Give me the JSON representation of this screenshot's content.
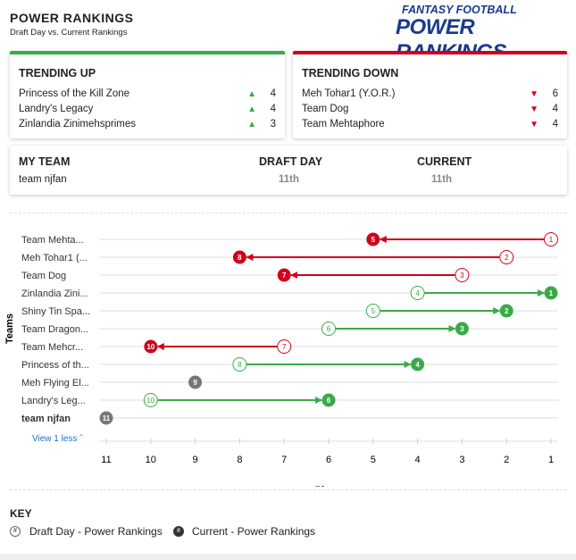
{
  "header": {
    "title": "POWER RANKINGS",
    "subtitle": "Draft Day vs. Current Rankings",
    "logo_text": [
      "FANTASY FOOTBALL",
      "POWER RANKINGS"
    ]
  },
  "trending_up": {
    "title": "TRENDING UP",
    "color": "#3aaa48",
    "items": [
      {
        "team": "Princess of the Kill Zone",
        "change": "4"
      },
      {
        "team": "Landry's Legacy",
        "change": "4"
      },
      {
        "team": "Zinlandia Zinimehsprimes",
        "change": "3"
      }
    ]
  },
  "trending_down": {
    "title": "TRENDING DOWN",
    "color": "#d0021b",
    "items": [
      {
        "team": "Meh Tohar1 (Y.O.R.)",
        "change": "6"
      },
      {
        "team": "Team Dog",
        "change": "4"
      },
      {
        "team": "Team Mehtaphore",
        "change": "4"
      }
    ]
  },
  "my_team": {
    "label": "MY TEAM",
    "draft_label": "DRAFT DAY",
    "current_label": "CURRENT",
    "team": "team njfan",
    "draft": "11th",
    "current": "11th"
  },
  "view_less": "View 1 less",
  "chart_data": {
    "type": "dumbbell",
    "xlabel": "Place",
    "ylabel": "Teams",
    "xlim": [
      11,
      1
    ],
    "x_reversed": true,
    "ticks": [
      "11",
      "10",
      "9",
      "8",
      "7",
      "6",
      "5",
      "4",
      "3",
      "2",
      "1"
    ],
    "colors": {
      "up": "#3aaa48",
      "down": "#d0021b",
      "same": "#777777"
    },
    "rows": [
      {
        "team": "Team Mehta...",
        "draft": 1,
        "current": 5
      },
      {
        "team": "Meh Tohar1 (...",
        "draft": 2,
        "current": 8
      },
      {
        "team": "Team Dog",
        "draft": 3,
        "current": 7
      },
      {
        "team": "Zinlandia Zini...",
        "draft": 4,
        "current": 1
      },
      {
        "team": "Shiny Tin Spa...",
        "draft": 5,
        "current": 2
      },
      {
        "team": "Team Dragon...",
        "draft": 6,
        "current": 3
      },
      {
        "team": "Team Mehcr...",
        "draft": 7,
        "current": 10
      },
      {
        "team": "Princess of th...",
        "draft": 8,
        "current": 4
      },
      {
        "team": "Meh Flying El...",
        "draft": 9,
        "current": 9
      },
      {
        "team": "Landry's Leg...",
        "draft": 10,
        "current": 6
      },
      {
        "team": "team njfan",
        "draft": 11,
        "current": 11,
        "bold": true
      }
    ]
  },
  "key": {
    "title": "KEY",
    "draft_symbol": "#",
    "current_symbol": "#",
    "draft_label": "Draft Day - Power Rankings",
    "current_label": "Current - Power Rankings"
  }
}
